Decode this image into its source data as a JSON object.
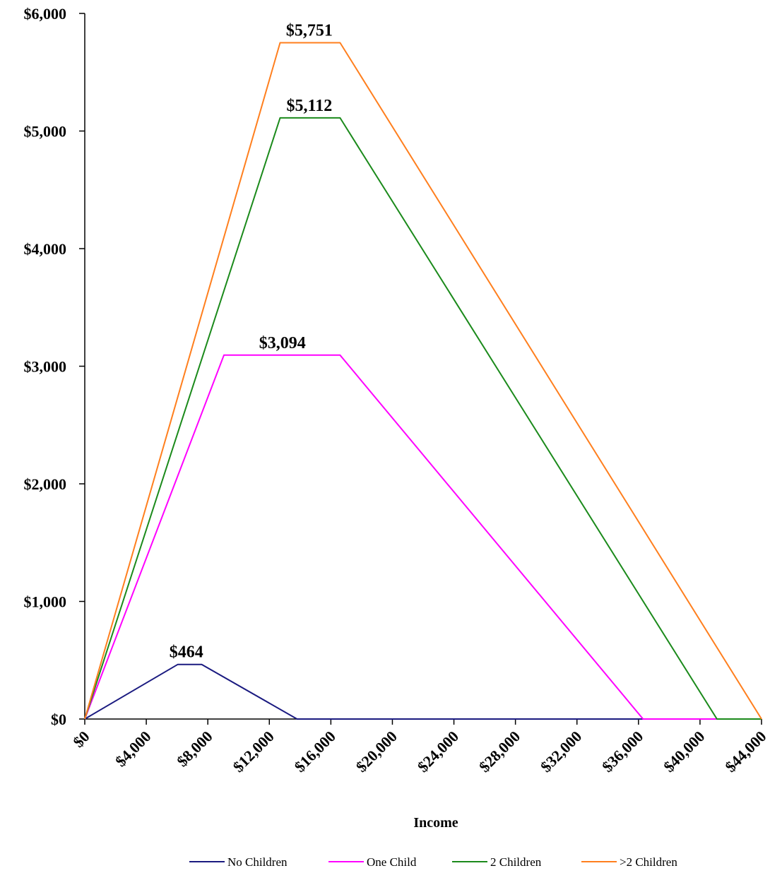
{
  "chart_data": {
    "type": "line",
    "title": "",
    "xlabel": "Income",
    "ylabel": "",
    "xlim": [
      0,
      44000
    ],
    "ylim": [
      0,
      6000
    ],
    "x_ticks": [
      0,
      4000,
      8000,
      12000,
      16000,
      20000,
      24000,
      28000,
      32000,
      36000,
      40000,
      44000
    ],
    "x_tick_labels": [
      "$0",
      "$4,000",
      "$8,000",
      "$12,000",
      "$16,000",
      "$20,000",
      "$24,000",
      "$28,000",
      "$32,000",
      "$36,000",
      "$40,000",
      "$44,000"
    ],
    "y_ticks": [
      0,
      1000,
      2000,
      3000,
      4000,
      5000,
      6000
    ],
    "y_tick_labels": [
      "$0",
      "$1,000",
      "$2,000",
      "$3,000",
      "$4,000",
      "$5,000",
      "$6,000"
    ],
    "grid": false,
    "legend_position": "bottom",
    "series": [
      {
        "name": "No Children",
        "color": "#1a1a80",
        "points": [
          [
            0,
            0
          ],
          [
            6050,
            464
          ],
          [
            7600,
            464
          ],
          [
            13800,
            0
          ],
          [
            44000,
            0
          ]
        ]
      },
      {
        "name": "One Child",
        "color": "#ff00ff",
        "points": [
          [
            0,
            0
          ],
          [
            9050,
            3094
          ],
          [
            16600,
            3094
          ],
          [
            36300,
            0
          ],
          [
            44000,
            0
          ]
        ]
      },
      {
        "name": "2 Children",
        "color": "#1b8a1b",
        "points": [
          [
            0,
            0
          ],
          [
            12700,
            5112
          ],
          [
            16600,
            5112
          ],
          [
            41100,
            0
          ],
          [
            44000,
            0
          ]
        ]
      },
      {
        "name": ">2 Children",
        "color": "#ff7f1e",
        "points": [
          [
            0,
            0
          ],
          [
            12700,
            5751
          ],
          [
            16600,
            5751
          ],
          [
            44000,
            0
          ]
        ]
      }
    ],
    "annotations": [
      {
        "text": "$5,751",
        "x": 14600,
        "y": 5751,
        "series": ">2 Children"
      },
      {
        "text": "$5,112",
        "x": 14600,
        "y": 5112,
        "series": "2 Children"
      },
      {
        "text": "$3,094",
        "x": 12850,
        "y": 3094,
        "series": "One Child"
      },
      {
        "text": "$464",
        "x": 6600,
        "y": 464,
        "series": "No Children"
      }
    ]
  }
}
